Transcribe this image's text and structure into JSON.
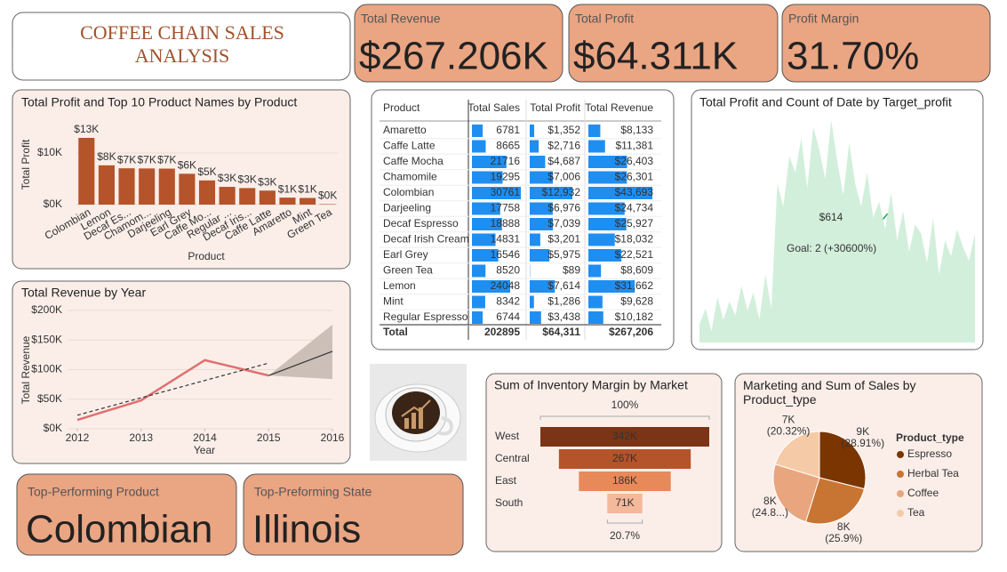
{
  "title": "COFFEE CHAIN SALES ANALYSIS",
  "cards": [
    {
      "label": "Total Revenue",
      "value": "$267.206K"
    },
    {
      "label": "Total Profit",
      "value": "$64.311K"
    },
    {
      "label": "Profit Margin",
      "value": "31.70%"
    },
    {
      "label": "Top-Performing Product",
      "value": "Colombian"
    },
    {
      "label": "Top-Preforming State",
      "value": "Illinois"
    }
  ],
  "table": {
    "columns": [
      "Product",
      "Total Sales",
      "Total Profit",
      "Total Revenue"
    ],
    "rows": [
      {
        "product": "Amaretto",
        "sales": 6781,
        "profit": {
          "value": 1352,
          "label": "$1,352"
        },
        "revenue": {
          "value": 8133,
          "label": "$8,133"
        }
      },
      {
        "product": "Caffe Latte",
        "sales": 8665,
        "profit": {
          "value": 2716,
          "label": "$2,716"
        },
        "revenue": {
          "value": 11381,
          "label": "$11,381"
        }
      },
      {
        "product": "Caffe Mocha",
        "sales": 21716,
        "profit": {
          "value": 4687,
          "label": "$4,687"
        },
        "revenue": {
          "value": 26403,
          "label": "$26,403"
        }
      },
      {
        "product": "Chamomile",
        "sales": 19295,
        "profit": {
          "value": 7006,
          "label": "$7,006"
        },
        "revenue": {
          "value": 26301,
          "label": "$26,301"
        }
      },
      {
        "product": "Colombian",
        "sales": 30761,
        "profit": {
          "value": 12932,
          "label": "$12,932"
        },
        "revenue": {
          "value": 43693,
          "label": "$43,693"
        }
      },
      {
        "product": "Darjeeling",
        "sales": 17758,
        "profit": {
          "value": 6976,
          "label": "$6,976"
        },
        "revenue": {
          "value": 24734,
          "label": "$24,734"
        }
      },
      {
        "product": "Decaf Espresso",
        "sales": 18888,
        "profit": {
          "value": 7039,
          "label": "$7,039"
        },
        "revenue": {
          "value": 25927,
          "label": "$25,927"
        }
      },
      {
        "product": "Decaf Irish Cream",
        "sales": 14831,
        "profit": {
          "value": 3201,
          "label": "$3,201"
        },
        "revenue": {
          "value": 18032,
          "label": "$18,032"
        }
      },
      {
        "product": "Earl Grey",
        "sales": 16546,
        "profit": {
          "value": 5975,
          "label": "$5,975"
        },
        "revenue": {
          "value": 22521,
          "label": "$22,521"
        }
      },
      {
        "product": "Green Tea",
        "sales": 8520,
        "profit": {
          "value": 89,
          "label": "$89"
        },
        "revenue": {
          "value": 8609,
          "label": "$8,609"
        }
      },
      {
        "product": "Lemon",
        "sales": 24048,
        "profit": {
          "value": 7614,
          "label": "$7,614"
        },
        "revenue": {
          "value": 31662,
          "label": "$31,662"
        }
      },
      {
        "product": "Mint",
        "sales": 8342,
        "profit": {
          "value": 1286,
          "label": "$1,286"
        },
        "revenue": {
          "value": 9628,
          "label": "$9,628"
        }
      },
      {
        "product": "Regular Espresso",
        "sales": 6744,
        "profit": {
          "value": 3438,
          "label": "$3,438"
        },
        "revenue": {
          "value": 10182,
          "label": "$10,182"
        }
      }
    ],
    "total": {
      "product": "Total",
      "sales": 202895,
      "profit": {
        "value": 64311,
        "label": "$64,311"
      },
      "revenue": {
        "value": 267206,
        "label": "$267,206"
      }
    },
    "bar_color": "#1f8ef1"
  },
  "chart_data": [
    {
      "type": "bar",
      "title": "Total Profit and Top 10 Product Names by Product",
      "x_label": "Product",
      "y_label": "Total Profit",
      "categories": [
        "Colombian",
        "Lemon",
        "Decaf Es...",
        "Chamom...",
        "Darjeeling",
        "Earl Grey",
        "Caffe Mo...",
        "Regular ...",
        "Decaf Iris...",
        "Caffe Latte",
        "Amaretto",
        "Mint",
        "Green Tea"
      ],
      "values": [
        12932,
        7614,
        7039,
        7006,
        6976,
        5975,
        4687,
        3438,
        3201,
        2716,
        1352,
        1286,
        89
      ],
      "value_labels": [
        "$13K",
        "$8K",
        "$7K",
        "$7K",
        "$7K",
        "$6K",
        "$5K",
        "$3K",
        "$3K",
        "$3K",
        "$1K",
        "$1K",
        "$0K"
      ],
      "color": "#b5532a",
      "ylim": [
        0,
        15000
      ],
      "yticks": [
        {
          "value": 0,
          "label": "$0K"
        },
        {
          "value": 10000,
          "label": "$10K"
        }
      ]
    },
    {
      "type": "line",
      "title": "Total Revenue by Year",
      "x_label": "Year",
      "y_label": "Total Revenue",
      "x": [
        2012,
        2013,
        2014,
        2015,
        2016
      ],
      "series": [
        {
          "color": "#e07070",
          "values": [
            15000,
            48000,
            116000,
            90000,
            null
          ]
        },
        {
          "color": "#333333",
          "dashed": true,
          "values": [
            23000,
            52333,
            81667,
            111000,
            null
          ]
        },
        {
          "color": "#333333",
          "values": [
            null,
            null,
            null,
            90000,
            131000
          ],
          "upper": [
            null,
            null,
            null,
            90000,
            176000
          ],
          "lower": [
            null,
            null,
            null,
            90000,
            84000
          ],
          "band_color": "#cbbfb8"
        }
      ],
      "xlim": [
        2012,
        2016
      ],
      "xticks": [
        2012,
        2013,
        2014,
        2015,
        2016
      ],
      "ylim": [
        0,
        200000
      ],
      "yticks": [
        {
          "value": 0,
          "label": "$0K"
        },
        {
          "value": 50000,
          "label": "$50K"
        },
        {
          "value": 100000,
          "label": "$100K"
        },
        {
          "value": 150000,
          "label": "$150K"
        },
        {
          "value": 200000,
          "label": "$200K"
        }
      ]
    },
    {
      "type": "area",
      "title": "Total Profit and Count of Date by Target_profit",
      "kpi": {
        "value": 614,
        "label": "$614"
      },
      "goal": "Goal: 2 (+30600%)",
      "kpi_color": "#1aa84c",
      "color": "#d2efdb",
      "ylim": [
        0,
        100
      ],
      "values": [
        8,
        15,
        5,
        20,
        10,
        18,
        12,
        25,
        14,
        22,
        10,
        30,
        15,
        70,
        60,
        82,
        75,
        90,
        68,
        95,
        85,
        72,
        98,
        80,
        65,
        88,
        70,
        60,
        75,
        55,
        62,
        50,
        66,
        45,
        58,
        40,
        52,
        48,
        35,
        55,
        30,
        45,
        38,
        50,
        42,
        36,
        48
      ]
    },
    {
      "type": "funnel",
      "title": "Sum of Inventory Margin by Market",
      "categories": [
        "West",
        "Central",
        "East",
        "South"
      ],
      "values": [
        342000,
        267000,
        186000,
        71000
      ],
      "value_labels": [
        "342K",
        "267K",
        "186K",
        "71K"
      ],
      "colors": [
        "#7b3416",
        "#b5532a",
        "#e8895a",
        "#f4b89a"
      ],
      "percent_labels": [
        {
          "value": 100,
          "label": "100%"
        },
        {
          "value": 20.7,
          "label": "20.7%"
        }
      ]
    },
    {
      "type": "pie",
      "title": "Marketing and Sum of Sales by Product_type",
      "legend_title": "Product_type",
      "categories": [
        "Espresso",
        "Herbal Tea",
        "Coffee",
        "Tea"
      ],
      "values": [
        28.91,
        25.9,
        24.87,
        20.32
      ],
      "value_labels": [
        "(28.91%)",
        "(25.9%)",
        "(24.8...)",
        "(20.32%)"
      ],
      "marketing_labels": [
        "9K",
        "8K",
        "8K",
        "7K"
      ],
      "colors": [
        "#7b3500",
        "#c87533",
        "#e8a57e",
        "#f5cba7"
      ],
      "legend": "right"
    }
  ]
}
